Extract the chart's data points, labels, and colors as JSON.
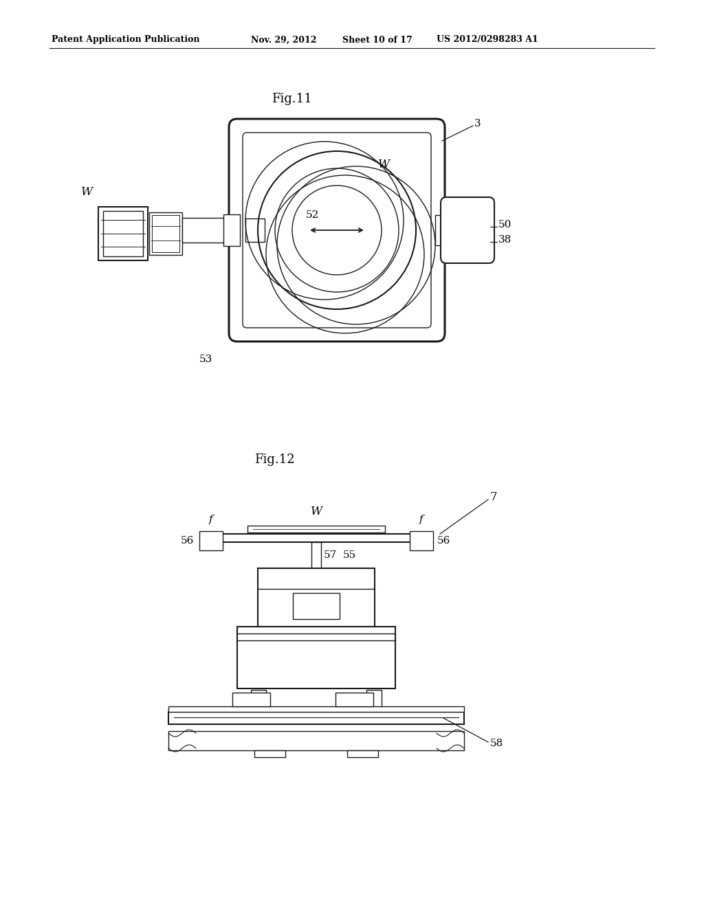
{
  "bg_color": "#ffffff",
  "line_color": "#1a1a1a",
  "header_text": "Patent Application Publication",
  "header_date": "Nov. 29, 2012",
  "header_sheet": "Sheet 10 of 17",
  "header_patent": "US 2012/0298283 A1",
  "fig11_title": "Fig.11",
  "fig12_title": "Fig.12"
}
